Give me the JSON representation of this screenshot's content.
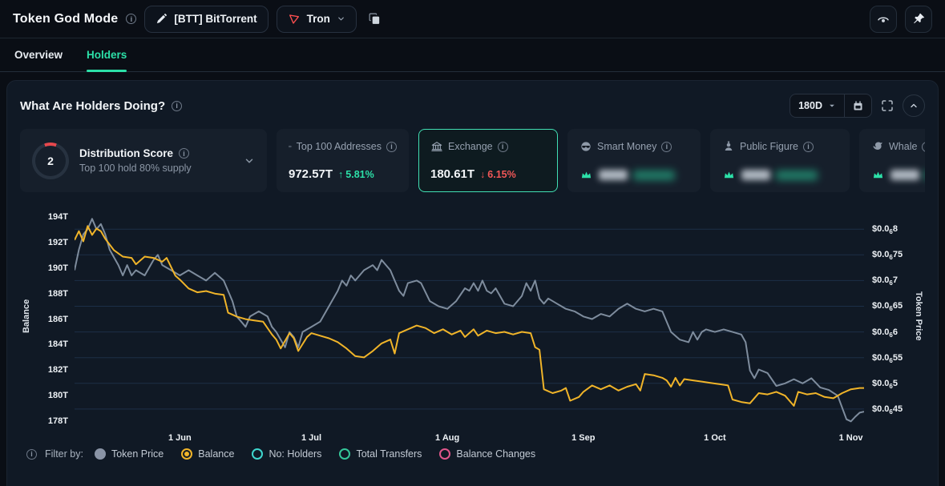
{
  "header": {
    "title": "Token God Mode",
    "token_label": "[BTT] BitTorrent",
    "chain_label": "Tron"
  },
  "tabs": [
    {
      "label": "Overview",
      "active": false
    },
    {
      "label": "Holders",
      "active": true
    }
  ],
  "panel": {
    "title": "What Are Holders Doing?",
    "timeframe": "180D"
  },
  "stat_cards": {
    "distribution": {
      "score": "2",
      "title": "Distribution Score",
      "subtitle": "Top 100 hold 80% supply"
    },
    "top100": {
      "title": "Top 100 Addresses",
      "value": "972.57T",
      "arrow": "↑",
      "change": "5.81%",
      "direction": "up"
    },
    "exchange": {
      "title": "Exchange",
      "value": "180.61T",
      "arrow": "↓",
      "change": "6.15%",
      "direction": "down",
      "selected": true
    },
    "smart_money": {
      "title": "Smart Money",
      "value_hidden": true
    },
    "public_figure": {
      "title": "Public Figure",
      "value_hidden": true
    },
    "whale": {
      "title": "Whale",
      "value_hidden": true
    }
  },
  "filter": {
    "label": "Filter by:",
    "options": [
      {
        "name": "token-price",
        "label": "Token Price",
        "color": "#8a94a6",
        "state": "filled"
      },
      {
        "name": "balance",
        "label": "Balance",
        "color": "#F0B429",
        "state": "selected"
      },
      {
        "name": "no-holders",
        "label": "No: Holders",
        "color": "#3ED6CE",
        "state": "empty"
      },
      {
        "name": "total-transfers",
        "label": "Total Transfers",
        "color": "#35C79A",
        "state": "empty"
      },
      {
        "name": "balance-changes",
        "label": "Balance Changes",
        "color": "#E0568B",
        "state": "empty"
      }
    ]
  },
  "chart_data": {
    "type": "line",
    "grid": true,
    "grid_color": "#1c2f47",
    "x_axis": {
      "max_day": 180,
      "ticks": [
        {
          "day": 24,
          "label": "1 Jun"
        },
        {
          "day": 54,
          "label": "1 Jul"
        },
        {
          "day": 85,
          "label": "1 Aug"
        },
        {
          "day": 116,
          "label": "1 Sep"
        },
        {
          "day": 146,
          "label": "1 Oct"
        },
        {
          "day": 177,
          "label": "1 Nov"
        }
      ]
    },
    "left_axis": {
      "title": "Balance",
      "unit": "T",
      "min": 177.5,
      "max": 194.95,
      "ticks": [
        {
          "value": 194,
          "label": "194T"
        },
        {
          "value": 192,
          "label": "192T"
        },
        {
          "value": 190,
          "label": "190T"
        },
        {
          "value": 188,
          "label": "188T"
        },
        {
          "value": 186,
          "label": "186T"
        },
        {
          "value": 184,
          "label": "184T"
        },
        {
          "value": 182,
          "label": "182T"
        },
        {
          "value": 180,
          "label": "180T"
        },
        {
          "value": 178,
          "label": "178T"
        }
      ]
    },
    "right_axis": {
      "title": "Token Price",
      "unit": "$ (×1e-6)",
      "min": 0.414,
      "max": 0.847,
      "ticks": [
        {
          "value": 0.8,
          "pre": "$0.0",
          "sub": "6",
          "post": "8"
        },
        {
          "value": 0.75,
          "pre": "$0.0",
          "sub": "6",
          "post": "75"
        },
        {
          "value": 0.7,
          "pre": "$0.0",
          "sub": "6",
          "post": "7"
        },
        {
          "value": 0.65,
          "pre": "$0.0",
          "sub": "6",
          "post": "65"
        },
        {
          "value": 0.6,
          "pre": "$0.0",
          "sub": "6",
          "post": "6"
        },
        {
          "value": 0.55,
          "pre": "$0.0",
          "sub": "6",
          "post": "55"
        },
        {
          "value": 0.5,
          "pre": "$0.0",
          "sub": "6",
          "post": "5"
        },
        {
          "value": 0.45,
          "pre": "$0.0",
          "sub": "6",
          "post": "45"
        }
      ]
    },
    "series": [
      {
        "name": "Token Price",
        "color": "#7E8C9D",
        "axis": "right",
        "points": [
          [
            0,
            0.72
          ],
          [
            1,
            0.76
          ],
          [
            2,
            0.79
          ],
          [
            3,
            0.8
          ],
          [
            4,
            0.82
          ],
          [
            5,
            0.8
          ],
          [
            6,
            0.81
          ],
          [
            7,
            0.79
          ],
          [
            8,
            0.76
          ],
          [
            10,
            0.73
          ],
          [
            11,
            0.71
          ],
          [
            12,
            0.73
          ],
          [
            13,
            0.71
          ],
          [
            14,
            0.72
          ],
          [
            16,
            0.71
          ],
          [
            18,
            0.74
          ],
          [
            19,
            0.75
          ],
          [
            20,
            0.73
          ],
          [
            22,
            0.72
          ],
          [
            24,
            0.71
          ],
          [
            26,
            0.72
          ],
          [
            28,
            0.71
          ],
          [
            30,
            0.7
          ],
          [
            32,
            0.715
          ],
          [
            34,
            0.7
          ],
          [
            36,
            0.66
          ],
          [
            37,
            0.63
          ],
          [
            38,
            0.62
          ],
          [
            39,
            0.61
          ],
          [
            40,
            0.63
          ],
          [
            42,
            0.64
          ],
          [
            44,
            0.63
          ],
          [
            45,
            0.61
          ],
          [
            46,
            0.6
          ],
          [
            47,
            0.585
          ],
          [
            48,
            0.57
          ],
          [
            49,
            0.6
          ],
          [
            50,
            0.59
          ],
          [
            51,
            0.57
          ],
          [
            52,
            0.6
          ],
          [
            54,
            0.61
          ],
          [
            56,
            0.62
          ],
          [
            58,
            0.65
          ],
          [
            60,
            0.68
          ],
          [
            61,
            0.7
          ],
          [
            62,
            0.69
          ],
          [
            63,
            0.71
          ],
          [
            64,
            0.7
          ],
          [
            66,
            0.72
          ],
          [
            68,
            0.73
          ],
          [
            69,
            0.72
          ],
          [
            70,
            0.74
          ],
          [
            71,
            0.73
          ],
          [
            72,
            0.72
          ],
          [
            73,
            0.7
          ],
          [
            74,
            0.68
          ],
          [
            75,
            0.67
          ],
          [
            76,
            0.695
          ],
          [
            78,
            0.7
          ],
          [
            79,
            0.695
          ],
          [
            81,
            0.66
          ],
          [
            83,
            0.65
          ],
          [
            85,
            0.645
          ],
          [
            87,
            0.66
          ],
          [
            89,
            0.685
          ],
          [
            90,
            0.68
          ],
          [
            91,
            0.695
          ],
          [
            92,
            0.68
          ],
          [
            93,
            0.7
          ],
          [
            94,
            0.68
          ],
          [
            95,
            0.675
          ],
          [
            96,
            0.685
          ],
          [
            98,
            0.655
          ],
          [
            100,
            0.65
          ],
          [
            102,
            0.67
          ],
          [
            103,
            0.695
          ],
          [
            104,
            0.68
          ],
          [
            105,
            0.7
          ],
          [
            106,
            0.665
          ],
          [
            107,
            0.655
          ],
          [
            108,
            0.665
          ],
          [
            110,
            0.655
          ],
          [
            112,
            0.645
          ],
          [
            114,
            0.64
          ],
          [
            116,
            0.63
          ],
          [
            118,
            0.625
          ],
          [
            120,
            0.635
          ],
          [
            122,
            0.63
          ],
          [
            124,
            0.645
          ],
          [
            126,
            0.655
          ],
          [
            128,
            0.645
          ],
          [
            130,
            0.64
          ],
          [
            132,
            0.645
          ],
          [
            134,
            0.64
          ],
          [
            136,
            0.6
          ],
          [
            138,
            0.585
          ],
          [
            140,
            0.58
          ],
          [
            141,
            0.6
          ],
          [
            142,
            0.585
          ],
          [
            143,
            0.6
          ],
          [
            144,
            0.605
          ],
          [
            146,
            0.6
          ],
          [
            148,
            0.605
          ],
          [
            150,
            0.6
          ],
          [
            152,
            0.595
          ],
          [
            153,
            0.58
          ],
          [
            154,
            0.525
          ],
          [
            155,
            0.51
          ],
          [
            156,
            0.527
          ],
          [
            158,
            0.52
          ],
          [
            160,
            0.495
          ],
          [
            162,
            0.5
          ],
          [
            164,
            0.508
          ],
          [
            166,
            0.5
          ],
          [
            168,
            0.51
          ],
          [
            170,
            0.492
          ],
          [
            172,
            0.487
          ],
          [
            174,
            0.476
          ],
          [
            176,
            0.43
          ],
          [
            177,
            0.426
          ],
          [
            178,
            0.435
          ],
          [
            179,
            0.443
          ],
          [
            180,
            0.445
          ]
        ]
      },
      {
        "name": "Balance",
        "color": "#F0B429",
        "axis": "left",
        "points": [
          [
            0,
            192.2
          ],
          [
            1,
            192.9
          ],
          [
            2,
            192.1
          ],
          [
            3,
            193.3
          ],
          [
            4,
            192.6
          ],
          [
            5,
            193.1
          ],
          [
            6,
            192.9
          ],
          [
            7,
            192.3
          ],
          [
            9,
            191.4
          ],
          [
            11,
            190.9
          ],
          [
            13,
            190.8
          ],
          [
            14,
            190.3
          ],
          [
            15,
            190.6
          ],
          [
            16,
            190.9
          ],
          [
            18,
            190.8
          ],
          [
            20,
            190.5
          ],
          [
            21,
            190.8
          ],
          [
            22,
            190.1
          ],
          [
            23,
            189.4
          ],
          [
            24,
            189.1
          ],
          [
            26,
            188.4
          ],
          [
            28,
            188.1
          ],
          [
            30,
            188.2
          ],
          [
            32,
            188.0
          ],
          [
            34,
            187.9
          ],
          [
            35,
            186.5
          ],
          [
            37,
            186.2
          ],
          [
            39,
            186.0
          ],
          [
            41,
            185.9
          ],
          [
            43,
            185.8
          ],
          [
            45,
            184.8
          ],
          [
            46,
            184.4
          ],
          [
            47,
            183.7
          ],
          [
            49,
            184.9
          ],
          [
            50,
            184.5
          ],
          [
            51,
            183.5
          ],
          [
            53,
            184.6
          ],
          [
            54,
            184.9
          ],
          [
            56,
            184.7
          ],
          [
            58,
            184.5
          ],
          [
            60,
            184.2
          ],
          [
            62,
            183.7
          ],
          [
            64,
            183.1
          ],
          [
            66,
            183.0
          ],
          [
            68,
            183.5
          ],
          [
            70,
            184.1
          ],
          [
            72,
            184.4
          ],
          [
            73,
            183.3
          ],
          [
            74,
            184.9
          ],
          [
            76,
            185.2
          ],
          [
            78,
            185.5
          ],
          [
            80,
            185.3
          ],
          [
            82,
            184.9
          ],
          [
            84,
            185.2
          ],
          [
            86,
            184.8
          ],
          [
            88,
            185.1
          ],
          [
            89,
            184.6
          ],
          [
            91,
            185.2
          ],
          [
            92,
            184.7
          ],
          [
            94,
            185.1
          ],
          [
            96,
            184.9
          ],
          [
            98,
            185.0
          ],
          [
            100,
            184.8
          ],
          [
            102,
            185.0
          ],
          [
            104,
            184.9
          ],
          [
            105,
            183.8
          ],
          [
            106,
            183.6
          ],
          [
            107,
            180.5
          ],
          [
            109,
            180.2
          ],
          [
            111,
            180.4
          ],
          [
            112,
            180.6
          ],
          [
            113,
            179.6
          ],
          [
            115,
            179.9
          ],
          [
            116,
            180.3
          ],
          [
            118,
            180.8
          ],
          [
            120,
            180.5
          ],
          [
            122,
            180.8
          ],
          [
            124,
            180.4
          ],
          [
            126,
            180.7
          ],
          [
            128,
            180.9
          ],
          [
            129,
            180.4
          ],
          [
            130,
            181.7
          ],
          [
            132,
            181.6
          ],
          [
            134,
            181.4
          ],
          [
            135,
            181.2
          ],
          [
            136,
            180.7
          ],
          [
            137,
            181.4
          ],
          [
            138,
            180.8
          ],
          [
            139,
            181.3
          ],
          [
            141,
            181.2
          ],
          [
            143,
            181.1
          ],
          [
            145,
            181.0
          ],
          [
            147,
            180.9
          ],
          [
            149,
            180.8
          ],
          [
            150,
            179.7
          ],
          [
            152,
            179.5
          ],
          [
            154,
            179.4
          ],
          [
            156,
            180.2
          ],
          [
            158,
            180.1
          ],
          [
            160,
            180.3
          ],
          [
            162,
            180.0
          ],
          [
            164,
            179.2
          ],
          [
            165,
            180.3
          ],
          [
            167,
            180.1
          ],
          [
            169,
            180.2
          ],
          [
            171,
            179.9
          ],
          [
            173,
            179.8
          ],
          [
            175,
            180.2
          ],
          [
            177,
            180.5
          ],
          [
            179,
            180.6
          ],
          [
            180,
            180.6
          ]
        ]
      }
    ]
  }
}
